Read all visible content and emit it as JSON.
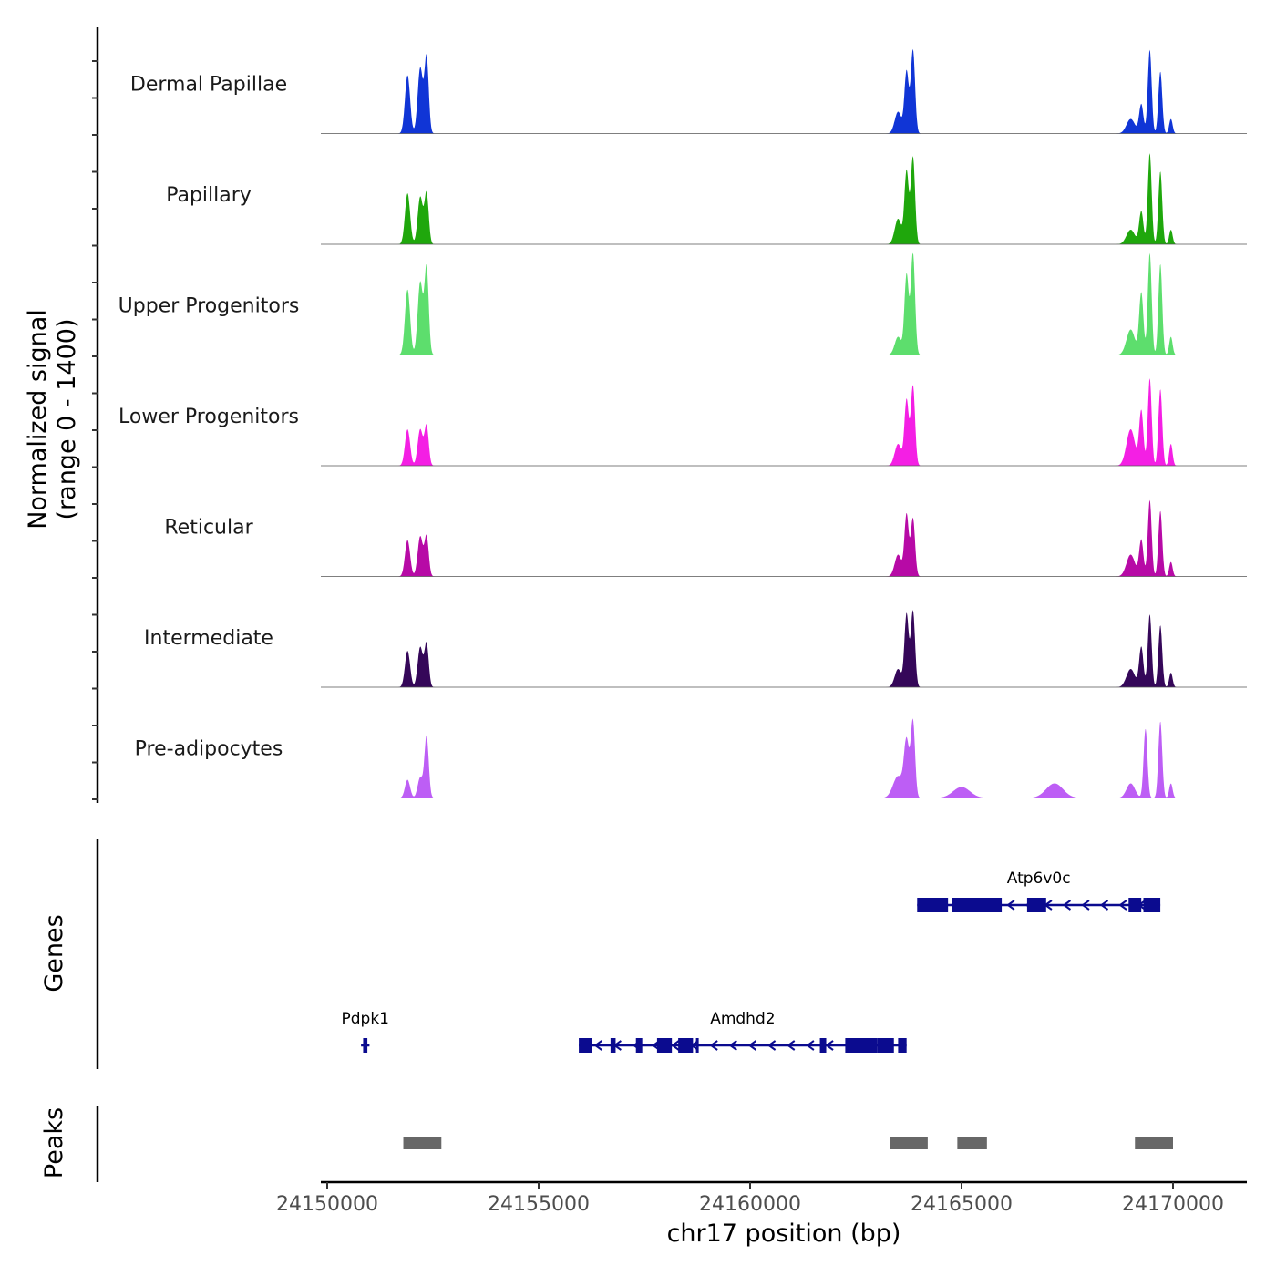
{
  "chart_data": {
    "type": "area",
    "chromosome": "chr17",
    "x_range": [
      24150000,
      24172000
    ],
    "xlabel": "chr17 position (bp)",
    "x_ticks": [
      24150000,
      24155000,
      24160000,
      24165000,
      24170000
    ],
    "x_tick_labels": [
      "24150000",
      "24155000",
      "24160000",
      "24165000",
      "24170000"
    ],
    "coverage": {
      "ylabel_line1": "Normalized signal",
      "ylabel_line2": "(range 0 - 1400)",
      "y_range": [
        0,
        1400
      ],
      "tracks": [
        {
          "name": "Dermal Papillae",
          "color": "#1035d6",
          "peaks": [
            [
              24151900,
              800,
              60
            ],
            [
              24152200,
              900,
              60
            ],
            [
              24152350,
              1050,
              50
            ],
            [
              24163500,
              300,
              80
            ],
            [
              24163700,
              850,
              50
            ],
            [
              24163850,
              1150,
              50
            ],
            [
              24169000,
              200,
              100
            ],
            [
              24169250,
              400,
              50
            ],
            [
              24169450,
              1150,
              45
            ],
            [
              24169700,
              850,
              45
            ],
            [
              24169950,
              200,
              40
            ]
          ]
        },
        {
          "name": "Papillary",
          "color": "#1fa70c",
          "peaks": [
            [
              24151900,
              700,
              60
            ],
            [
              24152200,
              650,
              60
            ],
            [
              24152350,
              700,
              50
            ],
            [
              24163500,
              350,
              80
            ],
            [
              24163700,
              1000,
              50
            ],
            [
              24163850,
              1200,
              50
            ],
            [
              24169000,
              200,
              100
            ],
            [
              24169250,
              450,
              50
            ],
            [
              24169450,
              1250,
              45
            ],
            [
              24169700,
              1000,
              45
            ],
            [
              24169950,
              200,
              40
            ]
          ]
        },
        {
          "name": "Upper Progenitors",
          "color": "#5dde6d",
          "peaks": [
            [
              24151900,
              900,
              60
            ],
            [
              24152200,
              1000,
              60
            ],
            [
              24152350,
              1200,
              50
            ],
            [
              24163500,
              250,
              80
            ],
            [
              24163700,
              1100,
              50
            ],
            [
              24163850,
              1400,
              50
            ],
            [
              24169000,
              350,
              100
            ],
            [
              24169250,
              850,
              50
            ],
            [
              24169450,
              1400,
              45
            ],
            [
              24169700,
              1250,
              45
            ],
            [
              24169950,
              250,
              40
            ]
          ]
        },
        {
          "name": "Lower Progenitors",
          "color": "#f41fe4",
          "peaks": [
            [
              24151900,
              500,
              60
            ],
            [
              24152200,
              500,
              60
            ],
            [
              24152350,
              550,
              50
            ],
            [
              24163500,
              300,
              80
            ],
            [
              24163700,
              900,
              50
            ],
            [
              24163850,
              1100,
              50
            ],
            [
              24169000,
              500,
              100
            ],
            [
              24169250,
              750,
              50
            ],
            [
              24169450,
              1200,
              45
            ],
            [
              24169700,
              1050,
              45
            ],
            [
              24169950,
              300,
              40
            ]
          ]
        },
        {
          "name": "Reticular",
          "color": "#b70aa6",
          "peaks": [
            [
              24151900,
              500,
              60
            ],
            [
              24152200,
              550,
              60
            ],
            [
              24152350,
              550,
              50
            ],
            [
              24163500,
              300,
              80
            ],
            [
              24163700,
              850,
              50
            ],
            [
              24163850,
              800,
              50
            ],
            [
              24169000,
              300,
              100
            ],
            [
              24169250,
              500,
              50
            ],
            [
              24169450,
              1050,
              45
            ],
            [
              24169700,
              900,
              45
            ],
            [
              24169950,
              200,
              40
            ]
          ]
        },
        {
          "name": "Intermediate",
          "color": "#350759",
          "peaks": [
            [
              24151900,
              500,
              60
            ],
            [
              24152200,
              550,
              60
            ],
            [
              24152350,
              600,
              50
            ],
            [
              24163500,
              250,
              80
            ],
            [
              24163700,
              1000,
              50
            ],
            [
              24163850,
              1050,
              50
            ],
            [
              24169000,
              250,
              100
            ],
            [
              24169250,
              550,
              50
            ],
            [
              24169450,
              1000,
              45
            ],
            [
              24169700,
              850,
              45
            ],
            [
              24169950,
              200,
              40
            ]
          ]
        },
        {
          "name": "Pre-adipocytes",
          "color": "#bd5ef5",
          "peaks": [
            [
              24151900,
              250,
              60
            ],
            [
              24152200,
              280,
              60
            ],
            [
              24152350,
              850,
              50
            ],
            [
              24163500,
              300,
              120
            ],
            [
              24163700,
              750,
              60
            ],
            [
              24163850,
              1050,
              50
            ],
            [
              24165000,
              150,
              200
            ],
            [
              24167200,
              200,
              200
            ],
            [
              24169000,
              200,
              100
            ],
            [
              24169350,
              950,
              45
            ],
            [
              24169700,
              1050,
              45
            ],
            [
              24169950,
              200,
              40
            ]
          ]
        }
      ]
    },
    "genes": {
      "ylabel": "Genes",
      "color": "#0b0b8f",
      "items": [
        {
          "name": "Atp6v0c",
          "start": 24163950,
          "end": 24169700,
          "row": 0,
          "strand": "-",
          "exons": [
            [
              24163950,
              24164680
            ],
            [
              24164780,
              24165950
            ],
            [
              24166550,
              24167000
            ],
            [
              24168950,
              24169250
            ],
            [
              24169300,
              24169700
            ]
          ]
        },
        {
          "name": "Pdpk1",
          "start": 24150800,
          "end": 24151000,
          "row": 1,
          "strand": "-",
          "exons": [
            [
              24150850,
              24150950
            ]
          ]
        },
        {
          "name": "Amdhd2",
          "start": 24155950,
          "end": 24163700,
          "row": 1,
          "strand": "-",
          "exons": [
            [
              24155950,
              24156250
            ],
            [
              24156700,
              24156820
            ],
            [
              24157300,
              24157450
            ],
            [
              24157800,
              24158150
            ],
            [
              24158300,
              24158650
            ],
            [
              24158720,
              24158780
            ],
            [
              24161650,
              24161800
            ],
            [
              24162250,
              24163000
            ],
            [
              24163000,
              24163400
            ],
            [
              24163500,
              24163700
            ]
          ]
        }
      ]
    },
    "peaks": {
      "ylabel": "Peaks",
      "color": "#676767",
      "regions": [
        [
          24151800,
          24152700
        ],
        [
          24163300,
          24164200
        ],
        [
          24164900,
          24165600
        ],
        [
          24169100,
          24170000
        ]
      ]
    }
  }
}
